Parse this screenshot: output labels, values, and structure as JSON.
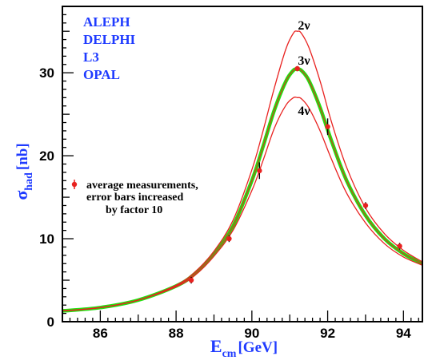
{
  "chart_data": {
    "type": "line",
    "title": "",
    "experiments": [
      "ALEPH",
      "DELPHI",
      "L3",
      "OPAL"
    ],
    "xlabel": {
      "main": "E",
      "sub": "cm",
      "unit": "[GeV]"
    },
    "ylabel": {
      "main": "σ",
      "sub": "had",
      "unit": "[nb]"
    },
    "xlim": [
      85,
      94.5
    ],
    "ylim": [
      0,
      38
    ],
    "xticks": [
      "86",
      "88",
      "90",
      "92",
      "94"
    ],
    "xtick_values": [
      86,
      88,
      90,
      92,
      94
    ],
    "yticks": [
      "0",
      "10",
      "20",
      "30"
    ],
    "ytick_values": [
      0,
      10,
      20,
      30
    ],
    "grid": false,
    "legend": {
      "placement": "left-middle",
      "lines": [
        "average measurements,",
        "error bars increased",
        "by factor 10"
      ]
    },
    "series": [
      {
        "name": "2ν",
        "color": "#e8211f",
        "peak": 35.0,
        "x": [
          85.0,
          86.0,
          87.0,
          88.0,
          88.5,
          89.0,
          89.5,
          90.0,
          90.3,
          90.6,
          90.9,
          91.1,
          91.2,
          91.3,
          91.5,
          91.8,
          92.1,
          92.5,
          93.0,
          93.5,
          94.0,
          94.5
        ],
        "y": [
          1.3,
          1.7,
          2.6,
          4.4,
          6.0,
          8.5,
          12.2,
          18.3,
          23.1,
          28.3,
          32.9,
          34.8,
          35.0,
          34.8,
          33.1,
          29.0,
          24.1,
          18.6,
          13.7,
          10.6,
          8.6,
          7.2
        ]
      },
      {
        "name": "3ν",
        "color": "#22e010",
        "peak": 30.4,
        "x": [
          85.0,
          86.0,
          87.0,
          88.0,
          88.5,
          89.0,
          89.5,
          90.0,
          90.3,
          90.6,
          90.9,
          91.1,
          91.2,
          91.3,
          91.5,
          91.8,
          92.1,
          92.5,
          93.0,
          93.5,
          94.0,
          94.5
        ],
        "y": [
          1.3,
          1.7,
          2.6,
          4.3,
          5.8,
          8.2,
          11.5,
          17.0,
          21.2,
          25.6,
          29.0,
          30.3,
          30.4,
          30.3,
          29.1,
          25.8,
          21.8,
          17.0,
          12.8,
          10.0,
          8.2,
          7.0
        ]
      },
      {
        "name": "4ν",
        "color": "#e8211f",
        "peak": 27.0,
        "x": [
          85.0,
          86.0,
          87.0,
          88.0,
          88.5,
          89.0,
          89.5,
          90.0,
          90.3,
          90.6,
          90.9,
          91.1,
          91.2,
          91.3,
          91.5,
          91.8,
          92.1,
          92.5,
          93.0,
          93.5,
          94.0,
          94.5
        ],
        "y": [
          1.3,
          1.7,
          2.6,
          4.2,
          5.6,
          7.9,
          11.0,
          15.8,
          19.5,
          23.4,
          26.1,
          27.0,
          27.0,
          26.9,
          25.8,
          23.0,
          19.6,
          15.5,
          11.9,
          9.4,
          7.8,
          6.8
        ]
      }
    ],
    "measurements": {
      "name": "average measurements",
      "color": "#e8211f",
      "points": [
        {
          "x": 88.4,
          "y": 5.0,
          "err": 0.4
        },
        {
          "x": 89.4,
          "y": 10.0,
          "err": 0.4
        },
        {
          "x": 90.2,
          "y": 18.2,
          "err": 1.0
        },
        {
          "x": 91.2,
          "y": 30.5,
          "err": 0.3
        },
        {
          "x": 92.0,
          "y": 23.5,
          "err": 1.0
        },
        {
          "x": 93.0,
          "y": 14.0,
          "err": 0.4
        },
        {
          "x": 93.9,
          "y": 9.1,
          "err": 0.4
        }
      ]
    },
    "colors": {
      "frame": "#000000",
      "experiments_text": "#1f3bff",
      "axis_labels": "#1f3bff",
      "curve_red": "#e8211f",
      "curve_green": "#22e010"
    }
  }
}
